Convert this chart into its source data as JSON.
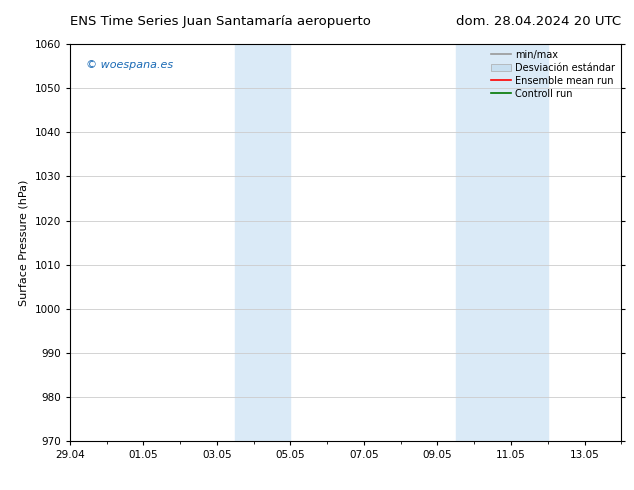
{
  "title_left": "ENS Time Series Juan Santamaría aeropuerto",
  "title_right": "dom. 28.04.2024 20 UTC",
  "ylabel": "Surface Pressure (hPa)",
  "ylim": [
    970,
    1060
  ],
  "yticks": [
    970,
    980,
    990,
    1000,
    1010,
    1020,
    1030,
    1040,
    1050,
    1060
  ],
  "xtick_labels": [
    "29.04",
    "01.05",
    "03.05",
    "05.05",
    "07.05",
    "09.05",
    "11.05",
    "13.05"
  ],
  "xtick_positions": [
    0,
    2,
    4,
    6,
    8,
    10,
    12,
    14
  ],
  "xlim": [
    0,
    15
  ],
  "watermark": "© woespana.es",
  "watermark_color": "#1a6ab5",
  "background_color": "#ffffff",
  "plot_bg_color": "#ffffff",
  "shaded_bands": [
    {
      "x_start": 4.5,
      "x_end": 6.0
    },
    {
      "x_start": 10.5,
      "x_end": 13.0
    }
  ],
  "shaded_color": "#daeaf7",
  "grid_color": "#cccccc",
  "title_fontsize": 9.5,
  "ylabel_fontsize": 8,
  "tick_fontsize": 7.5,
  "watermark_fontsize": 8,
  "legend_fontsize": 7,
  "legend_label_minmax": "min/max",
  "legend_label_ensemble": "Ensemble mean run",
  "legend_label_control": "Controll run",
  "legend_color_minmax": "#999999",
  "legend_color_std": "#c8dff0",
  "legend_color_ensemble": "#ff0000",
  "legend_color_control": "#007700"
}
